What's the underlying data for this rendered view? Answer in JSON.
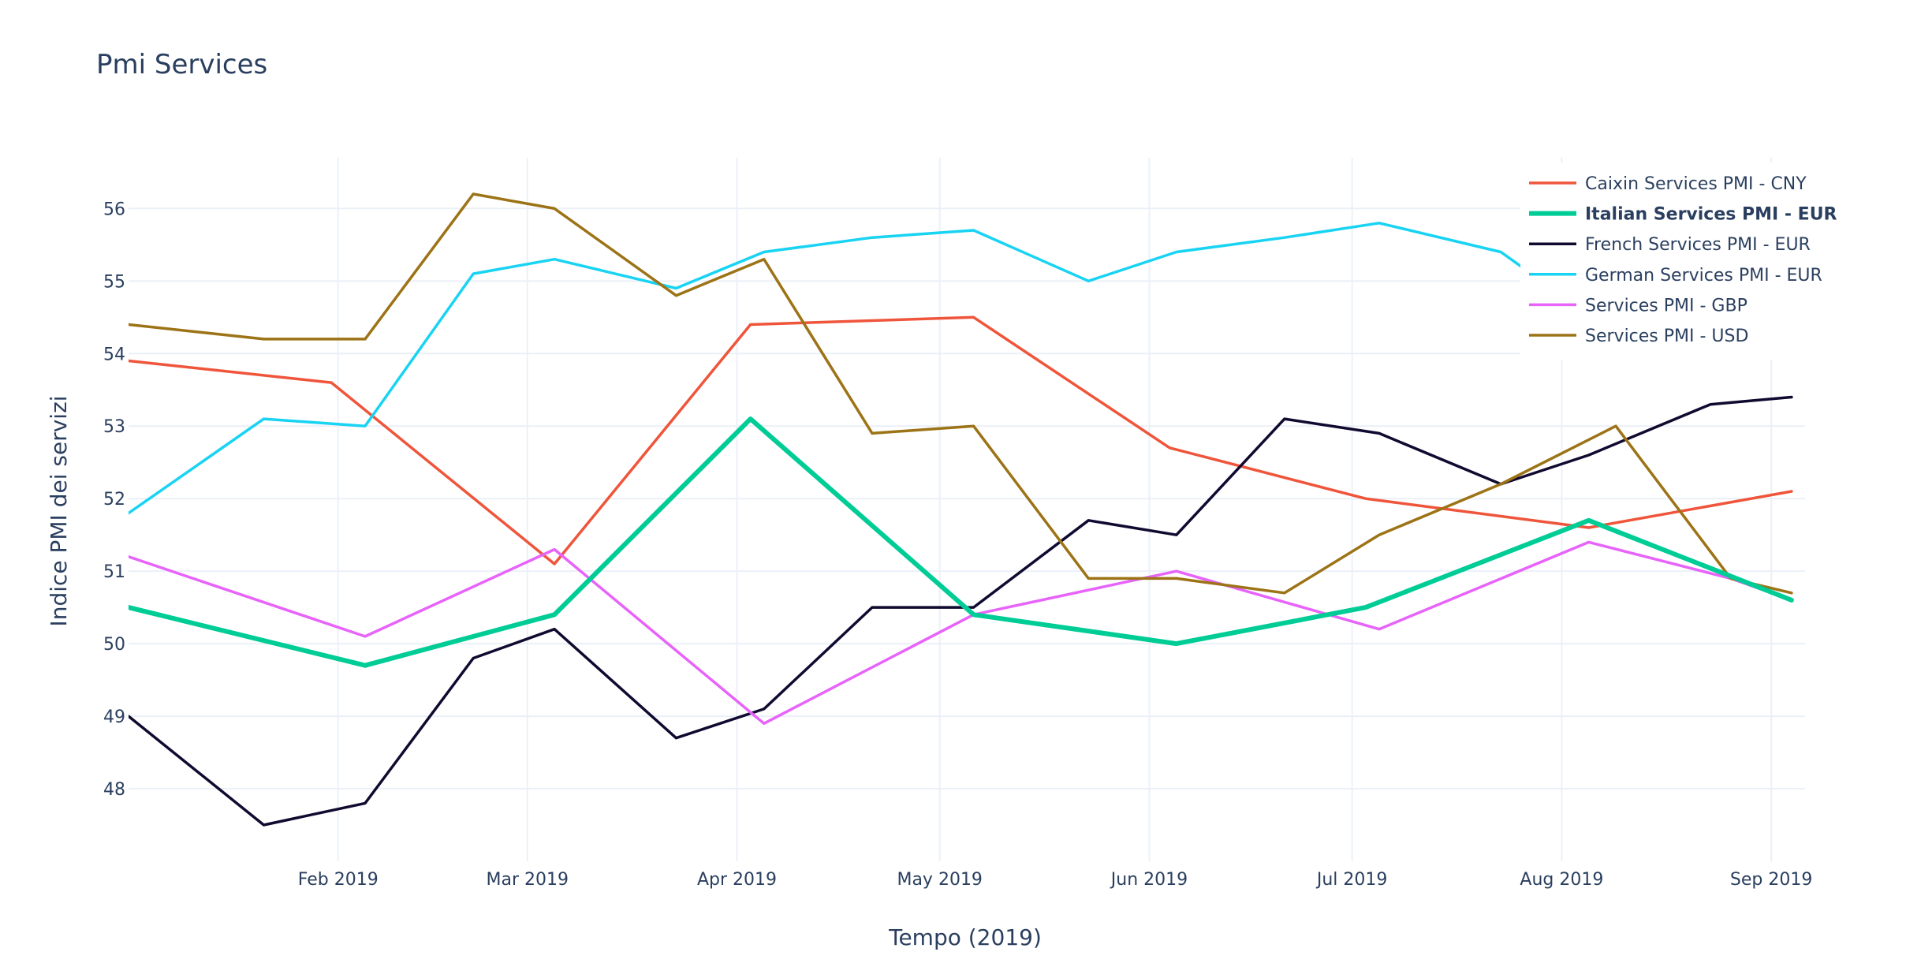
{
  "chart_data": {
    "type": "line",
    "title": "Pmi Services",
    "xlabel": "Tempo (2019)",
    "ylabel": "Indice PMI dei servizi",
    "x_range": [
      "2019-01-01",
      "2019-09-06"
    ],
    "ylim": [
      47.0,
      56.7
    ],
    "x_ticks": [
      {
        "date": "2019-02-01",
        "label": "Feb 2019"
      },
      {
        "date": "2019-03-01",
        "label": "Mar 2019"
      },
      {
        "date": "2019-04-01",
        "label": "Apr 2019"
      },
      {
        "date": "2019-05-01",
        "label": "May 2019"
      },
      {
        "date": "2019-06-01",
        "label": "Jun 2019"
      },
      {
        "date": "2019-07-01",
        "label": "Jul 2019"
      },
      {
        "date": "2019-08-01",
        "label": "Aug 2019"
      },
      {
        "date": "2019-09-01",
        "label": "Sep 2019"
      }
    ],
    "y_ticks": [
      48,
      49,
      50,
      51,
      52,
      53,
      54,
      55,
      56
    ],
    "grid": true,
    "legend_position": "top-right",
    "series": [
      {
        "name": "Caixin Services PMI - CNY",
        "color": "#ef553b",
        "bold": false,
        "points": [
          [
            "2019-01-01",
            53.9
          ],
          [
            "2019-01-31",
            53.6
          ],
          [
            "2019-03-05",
            51.1
          ],
          [
            "2019-04-03",
            54.4
          ],
          [
            "2019-05-06",
            54.5
          ],
          [
            "2019-06-04",
            52.7
          ],
          [
            "2019-07-03",
            52.0
          ],
          [
            "2019-08-05",
            51.6
          ],
          [
            "2019-09-04",
            52.1
          ]
        ]
      },
      {
        "name": "Italian Services PMI - EUR",
        "color": "#00cc96",
        "bold": true,
        "points": [
          [
            "2019-01-01",
            50.5
          ],
          [
            "2019-02-05",
            49.7
          ],
          [
            "2019-03-05",
            50.4
          ],
          [
            "2019-04-03",
            53.1
          ],
          [
            "2019-05-06",
            50.4
          ],
          [
            "2019-06-05",
            50.0
          ],
          [
            "2019-07-03",
            50.5
          ],
          [
            "2019-08-05",
            51.7
          ],
          [
            "2019-09-04",
            50.6
          ]
        ]
      },
      {
        "name": "French Services PMI - EUR",
        "color": "#110a30",
        "bold": false,
        "points": [
          [
            "2019-01-01",
            49.0
          ],
          [
            "2019-01-21",
            47.5
          ],
          [
            "2019-02-05",
            47.8
          ],
          [
            "2019-02-21",
            49.8
          ],
          [
            "2019-03-05",
            50.2
          ],
          [
            "2019-03-23",
            48.7
          ],
          [
            "2019-04-05",
            49.1
          ],
          [
            "2019-04-21",
            50.5
          ],
          [
            "2019-05-06",
            50.5
          ],
          [
            "2019-05-23",
            51.7
          ],
          [
            "2019-06-05",
            51.5
          ],
          [
            "2019-06-21",
            53.1
          ],
          [
            "2019-07-05",
            52.9
          ],
          [
            "2019-07-23",
            52.2
          ],
          [
            "2019-08-05",
            52.6
          ],
          [
            "2019-08-23",
            53.3
          ],
          [
            "2019-09-04",
            53.4
          ]
        ]
      },
      {
        "name": "German Services PMI - EUR",
        "color": "#19d3f3",
        "bold": false,
        "points": [
          [
            "2019-01-01",
            51.8
          ],
          [
            "2019-01-21",
            53.1
          ],
          [
            "2019-02-05",
            53.0
          ],
          [
            "2019-02-21",
            55.1
          ],
          [
            "2019-03-05",
            55.3
          ],
          [
            "2019-03-23",
            54.9
          ],
          [
            "2019-04-05",
            55.4
          ],
          [
            "2019-04-21",
            55.6
          ],
          [
            "2019-05-06",
            55.7
          ],
          [
            "2019-05-23",
            55.0
          ],
          [
            "2019-06-05",
            55.4
          ],
          [
            "2019-06-21",
            55.6
          ],
          [
            "2019-07-05",
            55.8
          ],
          [
            "2019-07-23",
            55.4
          ],
          [
            "2019-07-26",
            55.2
          ]
        ]
      },
      {
        "name": "Services PMI - GBP",
        "color": "#e763fa",
        "bold": false,
        "points": [
          [
            "2019-01-01",
            51.2
          ],
          [
            "2019-02-05",
            50.1
          ],
          [
            "2019-03-05",
            51.3
          ],
          [
            "2019-04-05",
            48.9
          ],
          [
            "2019-05-06",
            50.4
          ],
          [
            "2019-06-05",
            51.0
          ],
          [
            "2019-07-05",
            50.2
          ],
          [
            "2019-08-05",
            51.4
          ],
          [
            "2019-08-26",
            50.9
          ],
          [
            "2019-09-04",
            50.6
          ]
        ]
      },
      {
        "name": "Services PMI - USD",
        "color": "#9c7316",
        "bold": false,
        "points": [
          [
            "2019-01-01",
            54.4
          ],
          [
            "2019-01-21",
            54.2
          ],
          [
            "2019-02-05",
            54.2
          ],
          [
            "2019-02-21",
            56.2
          ],
          [
            "2019-03-05",
            56.0
          ],
          [
            "2019-03-23",
            54.8
          ],
          [
            "2019-04-05",
            55.3
          ],
          [
            "2019-04-21",
            52.9
          ],
          [
            "2019-05-06",
            53.0
          ],
          [
            "2019-05-23",
            50.9
          ],
          [
            "2019-06-05",
            50.9
          ],
          [
            "2019-06-21",
            50.7
          ],
          [
            "2019-07-05",
            51.5
          ],
          [
            "2019-07-23",
            52.2
          ],
          [
            "2019-08-09",
            53.0
          ],
          [
            "2019-08-26",
            50.9
          ],
          [
            "2019-09-04",
            50.7
          ]
        ]
      }
    ]
  }
}
